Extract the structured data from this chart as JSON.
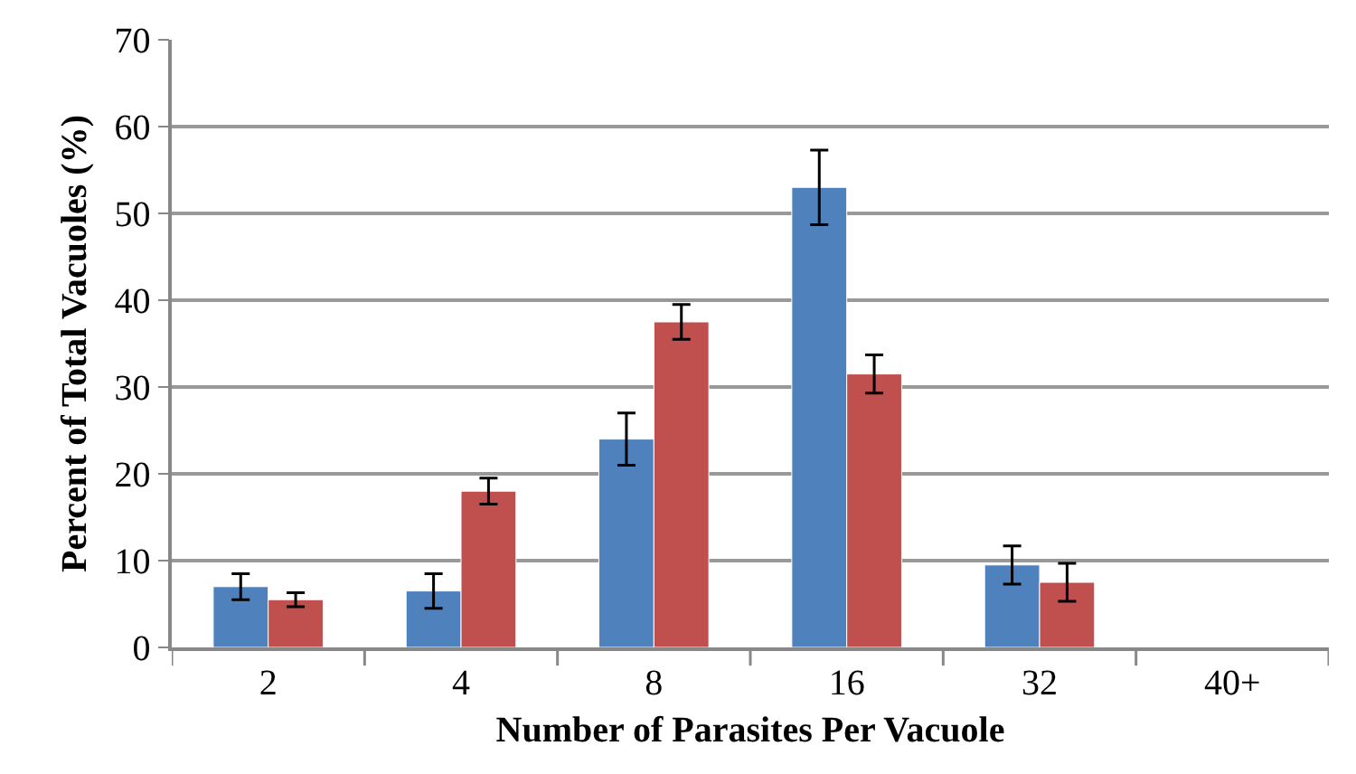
{
  "chart_data": {
    "type": "bar",
    "xlabel": "Number of Parasites Per Vacuole",
    "ylabel": "Percent of Total Vacuoles (%)",
    "categories": [
      "2",
      "4",
      "8",
      "16",
      "32",
      "40+"
    ],
    "series": [
      {
        "color": "#4f81bd",
        "values": [
          7,
          6.5,
          24,
          53,
          9.5,
          null
        ],
        "errors": [
          1.5,
          2,
          3,
          4.3,
          2.2,
          null
        ]
      },
      {
        "color": "#c0504d",
        "values": [
          5.5,
          18,
          37.5,
          31.5,
          7.5,
          null
        ],
        "errors": [
          0.8,
          1.5,
          2,
          2.2,
          2.2,
          null
        ]
      }
    ],
    "ylim": [
      0,
      70
    ],
    "yticks": [
      0,
      10,
      20,
      30,
      40,
      50,
      60,
      70
    ],
    "grid": "y"
  }
}
